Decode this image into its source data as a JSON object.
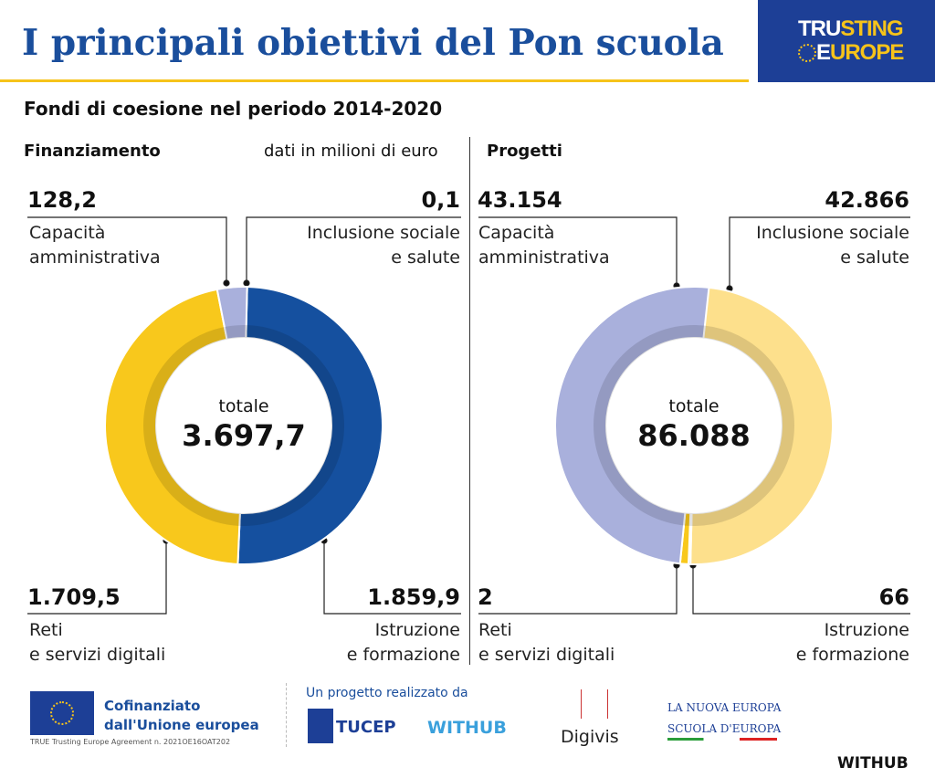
{
  "header": {
    "title": "I principali obiettivi del Pon scuola",
    "logo_line1_a": "TRU",
    "logo_line1_b": "STING",
    "logo_line2_a": "E",
    "logo_line2_b": "UROPE"
  },
  "subtitle": "Fondi di coesione nel periodo 2014-2020",
  "colors": {
    "blue": "#15509f",
    "yellow": "#f8c81c",
    "lavender": "#a9b0dc",
    "light_yellow": "#fde08c"
  },
  "chart_data": [
    {
      "type": "pie",
      "title": "Finanziamento",
      "unit_note": "dati in milioni di euro",
      "total_label": "totale",
      "total": "3.697,7",
      "slices": [
        {
          "name": "Inclusione sociale e salute",
          "value": 0.1,
          "display": "0,1",
          "label1": "Inclusione sociale",
          "label2": "e salute",
          "color": "#15509f"
        },
        {
          "name": "Istruzione e formazione",
          "value": 1859.9,
          "display": "1.859,9",
          "label1": "Istruzione",
          "label2": "e formazione",
          "color": "#15509f"
        },
        {
          "name": "Reti e servizi digitali",
          "value": 1709.5,
          "display": "1.709,5",
          "label1": "Reti",
          "label2": "e servizi digitali",
          "color": "#f8c81c"
        },
        {
          "name": "Capacità amministrativa",
          "value": 128.2,
          "display": "128,2",
          "label1": "Capacità",
          "label2": "amministrativa",
          "color": "#a9b0dc"
        }
      ]
    },
    {
      "type": "pie",
      "title": "Progetti",
      "total_label": "totale",
      "total": "86.088",
      "slices": [
        {
          "name": "Inclusione sociale e salute",
          "value": 42866,
          "display": "42.866",
          "label1": "Inclusione sociale",
          "label2": "e salute",
          "color": "#fde08c"
        },
        {
          "name": "Istruzione e formazione",
          "value": 66,
          "display": "66",
          "label1": "Istruzione",
          "label2": "e formazione",
          "color": "#15509f"
        },
        {
          "name": "Reti e servizi digitali",
          "value": 2,
          "display": "2",
          "label1": "Reti",
          "label2": "e servizi digitali",
          "color": "#f8c81c"
        },
        {
          "name": "Capacità amministrativa",
          "value": 43154,
          "display": "43.154",
          "label1": "Capacità",
          "label2": "amministrativa",
          "color": "#a9b0dc"
        }
      ]
    }
  ],
  "footer": {
    "eu1": "Cofinanziato",
    "eu2": "dall'Unione europea",
    "agreement": "TRUE Trusting Europe Agreement n. 2021OE16OAT202",
    "project": "Un progetto realizzato da",
    "tucep": "TUCEP",
    "withub": "WITHUB",
    "digivis": "Digivis",
    "lne1": "LA NUOVA EUROPA",
    "lne2": "SCUOLA D'EUROPA",
    "brand": "WITHUB"
  }
}
